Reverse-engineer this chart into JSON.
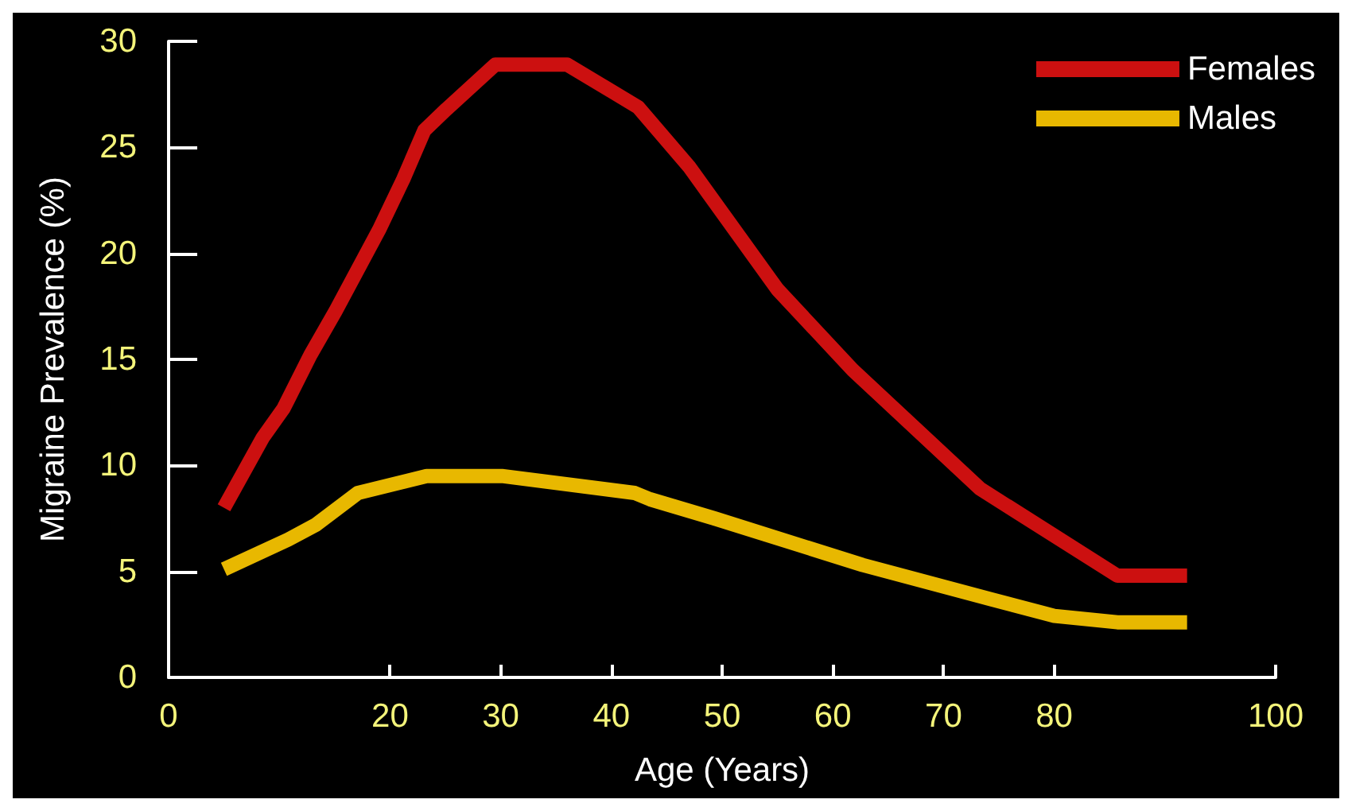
{
  "chart_data": {
    "type": "line",
    "xlabel": "Age (Years)",
    "ylabel": "Migraine Prevalence (%)",
    "xlim": [
      0,
      100
    ],
    "xticks": [
      0,
      20,
      30,
      40,
      50,
      60,
      70,
      80,
      100
    ],
    "ylim": [
      0,
      30
    ],
    "yticks": [
      0,
      5,
      10,
      15,
      20,
      25,
      30
    ],
    "grid": false,
    "legend": "top right",
    "marker": "none",
    "line_style": "solid",
    "series": [
      {
        "name": "Females",
        "color": "#cc1010",
        "x": [
          5,
          8.5,
          10.4,
          12.8,
          15.1,
          19,
          21.2,
          23.1,
          25.1,
          29.5,
          36,
          42.4,
          47,
          55,
          61.8,
          73.3,
          85.7,
          92
        ],
        "values": [
          8,
          11.3,
          12.7,
          15.2,
          17.3,
          21.1,
          23.5,
          25.8,
          26.8,
          28.9,
          28.9,
          26.9,
          24.1,
          18.3,
          14.5,
          8.9,
          4.8,
          4.8
        ]
      },
      {
        "name": "Males",
        "color": "#e8b800",
        "x": [
          5,
          10.8,
          13.3,
          17.1,
          23.3,
          30.1,
          42.1,
          43.5,
          49.3,
          62.7,
          74.2,
          80,
          85.7,
          92
        ],
        "values": [
          5.1,
          6.5,
          7.2,
          8.7,
          9.5,
          9.5,
          8.7,
          8.4,
          7.5,
          5.3,
          3.7,
          2.9,
          2.6,
          2.6
        ]
      }
    ]
  }
}
